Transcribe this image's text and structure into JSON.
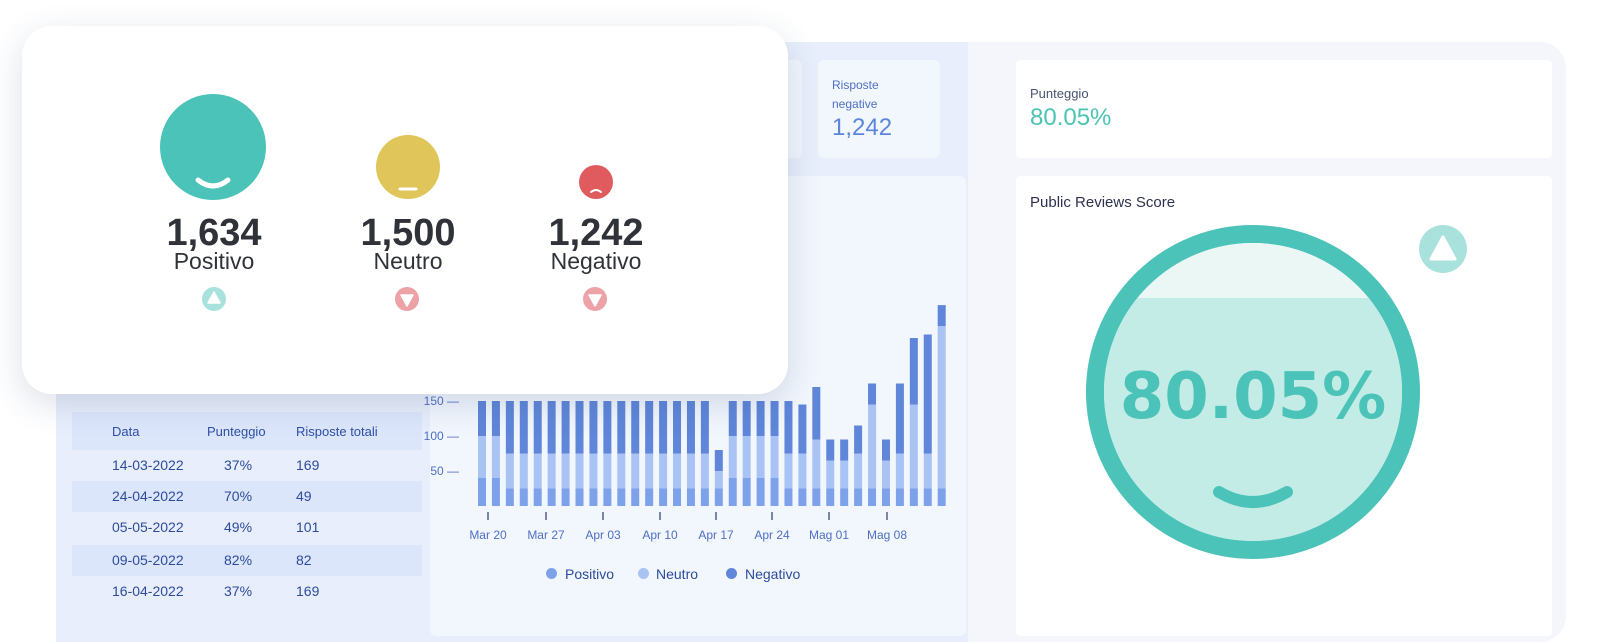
{
  "kpis": {
    "negative_responses": {
      "label_line1": "Risposte",
      "label_line2": "negative",
      "value": "1,242"
    }
  },
  "score": {
    "label": "Punteggio",
    "value": "80.05%"
  },
  "public_reviews": {
    "title": "Public Reviews Score",
    "value": "80.05%",
    "trend_icon": "triangle-up-icon"
  },
  "sentiment": [
    {
      "count": "1,634",
      "label": "Positivo",
      "face_color": "#4cc3b8",
      "trend": "up",
      "trend_color": "#a9e2dc"
    },
    {
      "count": "1,500",
      "label": "Neutro",
      "face_color": "#e0c55a",
      "trend": "down",
      "trend_color": "#eca2a6"
    },
    {
      "count": "1,242",
      "label": "Negativo",
      "face_color": "#e05b5d",
      "trend": "down",
      "trend_color": "#eca2a6"
    }
  ],
  "table": {
    "headers": [
      "Data",
      "Punteggio",
      "Risposte totali"
    ],
    "rows": [
      [
        "14-03-2022",
        "37%",
        "169"
      ],
      [
        "24-04-2022",
        "70%",
        "49"
      ],
      [
        "05-05-2022",
        "49%",
        "101"
      ],
      [
        "09-05-2022",
        "82%",
        "82"
      ],
      [
        "16-04-2022",
        "37%",
        "169"
      ]
    ]
  },
  "chart_data": {
    "type": "bar",
    "stacked": true,
    "x_ticks": [
      "Mar 20",
      "Mar 27",
      "Apr 03",
      "Apr 10",
      "Apr 17",
      "Apr 24",
      "Mag 01",
      "Mag 08"
    ],
    "y_ticks": [
      50,
      100,
      150
    ],
    "series": [
      {
        "name": "Positivo",
        "color": "#7ea2ea"
      },
      {
        "name": "Neutro",
        "color": "#a9c3f4"
      },
      {
        "name": "Negativo",
        "color": "#5f86d9"
      }
    ],
    "stacks": [
      [
        40,
        60,
        50
      ],
      [
        40,
        60,
        50
      ],
      [
        25,
        50,
        75
      ],
      [
        25,
        50,
        75
      ],
      [
        25,
        50,
        75
      ],
      [
        25,
        50,
        75
      ],
      [
        25,
        50,
        75
      ],
      [
        25,
        50,
        75
      ],
      [
        25,
        50,
        75
      ],
      [
        25,
        50,
        75
      ],
      [
        25,
        50,
        75
      ],
      [
        25,
        50,
        75
      ],
      [
        25,
        50,
        75
      ],
      [
        25,
        50,
        75
      ],
      [
        25,
        50,
        75
      ],
      [
        25,
        50,
        75
      ],
      [
        25,
        50,
        75
      ],
      [
        25,
        25,
        30
      ],
      [
        40,
        60,
        50
      ],
      [
        40,
        60,
        50
      ],
      [
        40,
        60,
        50
      ],
      [
        40,
        60,
        50
      ],
      [
        25,
        50,
        75
      ],
      [
        25,
        50,
        70
      ],
      [
        25,
        70,
        75
      ],
      [
        25,
        40,
        30
      ],
      [
        25,
        40,
        30
      ],
      [
        25,
        50,
        40
      ],
      [
        25,
        120,
        30
      ],
      [
        25,
        40,
        30
      ],
      [
        25,
        50,
        100
      ],
      [
        25,
        120,
        95
      ],
      [
        25,
        50,
        170
      ],
      [
        25,
        232,
        30
      ]
    ]
  },
  "colors": {
    "accent_teal": "#4cc3b8",
    "chart_blue": "#5f86d9"
  }
}
